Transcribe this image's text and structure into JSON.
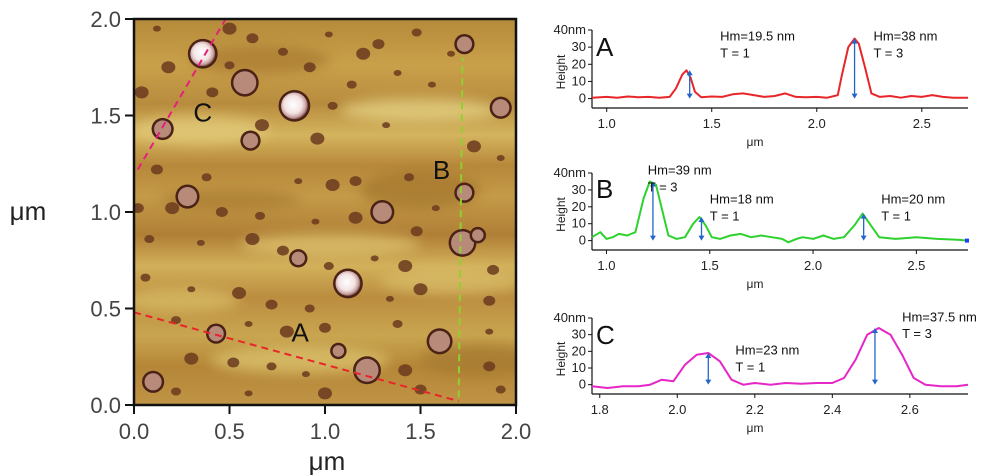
{
  "afm_image": {
    "x_axis": {
      "label": "μm",
      "ticks": [
        "0.0",
        "0.5",
        "1.0",
        "1.5",
        "2.0"
      ],
      "tick_values": [
        0,
        0.5,
        1.0,
        1.5,
        2.0
      ],
      "range": [
        0,
        2
      ]
    },
    "y_axis": {
      "label": "μm",
      "ticks": [
        "0.0",
        "0.5",
        "1.0",
        "1.5",
        "2.0"
      ],
      "tick_values": [
        0,
        0.5,
        1.0,
        1.5,
        2.0
      ],
      "range": [
        0,
        2
      ]
    },
    "line_labels": [
      {
        "text": "A",
        "x": 0.87,
        "y": 0.33
      },
      {
        "text": "B",
        "x": 1.61,
        "y": 1.17
      },
      {
        "text": "C",
        "x": 0.36,
        "y": 1.47
      }
    ],
    "profile_lines": [
      {
        "id": "A",
        "color": "#e8262a",
        "from": [
          0,
          0.48
        ],
        "to": [
          1.7,
          0.02
        ]
      },
      {
        "id": "B",
        "color": "#8fd12e",
        "from": [
          1.7,
          0.04
        ],
        "to": [
          1.72,
          1.8
        ]
      },
      {
        "id": "C",
        "color": "#e4207a",
        "from": [
          0.02,
          1.22
        ],
        "to": [
          0.48,
          2.0
        ]
      }
    ],
    "particles_large": [
      [
        0.36,
        1.82,
        0.065
      ],
      [
        0.58,
        1.67,
        0.06
      ],
      [
        0.84,
        1.55,
        0.07
      ],
      [
        0.15,
        1.43,
        0.045
      ],
      [
        1.72,
        0.84,
        0.06
      ],
      [
        1.12,
        0.63,
        0.065
      ],
      [
        1.6,
        0.33,
        0.055
      ],
      [
        1.22,
        0.18,
        0.06
      ],
      [
        0.1,
        0.12,
        0.045
      ],
      [
        0.43,
        0.37,
        0.04
      ],
      [
        1.73,
        1.87,
        0.04
      ],
      [
        1.73,
        1.1,
        0.04
      ],
      [
        1.3,
        1.0,
        0.05
      ],
      [
        0.28,
        1.08,
        0.05
      ],
      [
        0.61,
        1.37,
        0.04
      ],
      [
        1.92,
        1.54,
        0.045
      ],
      [
        0.86,
        0.76,
        0.035
      ],
      [
        1.07,
        0.28,
        0.03
      ],
      [
        1.8,
        0.88,
        0.03
      ]
    ],
    "particles_small": [
      [
        0.12,
        1.95
      ],
      [
        0.5,
        1.95
      ],
      [
        0.62,
        1.9
      ],
      [
        0.78,
        1.83
      ],
      [
        1.02,
        1.92
      ],
      [
        1.2,
        1.82
      ],
      [
        1.28,
        1.87
      ],
      [
        1.48,
        1.93
      ],
      [
        1.66,
        1.82
      ],
      [
        0.18,
        1.75
      ],
      [
        0.92,
        1.75
      ],
      [
        1.14,
        1.66
      ],
      [
        1.38,
        1.72
      ],
      [
        0.04,
        1.62
      ],
      [
        0.41,
        1.62
      ],
      [
        1.04,
        1.55
      ],
      [
        1.32,
        1.45
      ],
      [
        0.67,
        1.45
      ],
      [
        0.12,
        1.22
      ],
      [
        0.38,
        1.18
      ],
      [
        0.86,
        1.16
      ],
      [
        1.04,
        1.14
      ],
      [
        1.16,
        1.16
      ],
      [
        1.44,
        1.18
      ],
      [
        1.58,
        1.02
      ],
      [
        0.2,
        1.02
      ],
      [
        0.46,
        1.0
      ],
      [
        0.66,
        0.98
      ],
      [
        0.95,
        0.95
      ],
      [
        1.16,
        0.97
      ],
      [
        1.48,
        0.9
      ],
      [
        0.08,
        0.86
      ],
      [
        0.35,
        0.84
      ],
      [
        0.62,
        0.86
      ],
      [
        0.78,
        0.8
      ],
      [
        1.02,
        0.72
      ],
      [
        1.26,
        0.76
      ],
      [
        1.42,
        0.72
      ],
      [
        1.88,
        0.7
      ],
      [
        0.06,
        0.66
      ],
      [
        0.3,
        0.6
      ],
      [
        0.55,
        0.58
      ],
      [
        0.72,
        0.52
      ],
      [
        0.92,
        0.5
      ],
      [
        1.34,
        0.55
      ],
      [
        1.5,
        0.6
      ],
      [
        1.86,
        0.54
      ],
      [
        0.22,
        0.44
      ],
      [
        0.6,
        0.42
      ],
      [
        0.8,
        0.38
      ],
      [
        1.0,
        0.4
      ],
      [
        1.38,
        0.42
      ],
      [
        1.86,
        0.38
      ],
      [
        0.3,
        0.24
      ],
      [
        0.52,
        0.22
      ],
      [
        0.72,
        0.2
      ],
      [
        0.9,
        0.16
      ],
      [
        1.42,
        0.18
      ],
      [
        1.86,
        0.2
      ],
      [
        0.22,
        0.07
      ],
      [
        0.6,
        0.06
      ],
      [
        1.0,
        0.06
      ],
      [
        1.5,
        0.08
      ],
      [
        1.92,
        0.08
      ],
      [
        1.92,
        1.28
      ],
      [
        1.78,
        1.34
      ],
      [
        0.02,
        1.02
      ],
      [
        0.5,
        1.76
      ],
      [
        1.56,
        1.66
      ],
      [
        0.96,
        1.38
      ]
    ]
  },
  "chart_data": [
    {
      "type": "line",
      "panel": "A",
      "color": "#e8262a",
      "xlabel": "μm",
      "ylabel": "Height",
      "xlim": [
        0.93,
        2.72
      ],
      "ylim": [
        -2,
        40
      ],
      "x_ticks": [
        "1.0",
        "1.5",
        "2.0",
        "2.5"
      ],
      "x_tick_values": [
        1.0,
        1.5,
        2.0,
        2.5
      ],
      "y_ticks": [
        "0",
        "10",
        "20",
        "30",
        "40nm"
      ],
      "y_tick_values": [
        0,
        10,
        20,
        30,
        40
      ],
      "x": [
        0.93,
        1.0,
        1.05,
        1.1,
        1.15,
        1.2,
        1.25,
        1.3,
        1.33,
        1.36,
        1.38,
        1.4,
        1.42,
        1.45,
        1.5,
        1.55,
        1.6,
        1.65,
        1.7,
        1.75,
        1.8,
        1.85,
        1.9,
        1.95,
        2.0,
        2.05,
        2.1,
        2.12,
        2.15,
        2.18,
        2.2,
        2.23,
        2.26,
        2.3,
        2.35,
        2.4,
        2.45,
        2.5,
        2.55,
        2.6,
        2.65,
        2.72
      ],
      "y": [
        0.5,
        1,
        0.5,
        1.2,
        0.8,
        1,
        0.5,
        1,
        6,
        14,
        16.5,
        12,
        4,
        0.8,
        1.2,
        1,
        2.5,
        3,
        2,
        1,
        1.5,
        3,
        1,
        0.8,
        1,
        0.5,
        2,
        14,
        30,
        35,
        32,
        18,
        3,
        1,
        1.5,
        0.5,
        1.5,
        1,
        2,
        1,
        0.5,
        0.5
      ],
      "annotations": [
        {
          "text": "Hm=19.5 nm",
          "x": 1.54,
          "y": 34
        },
        {
          "text": "T = 1",
          "x": 1.54,
          "y": 24
        },
        {
          "text": "Hm=38 nm",
          "x": 2.27,
          "y": 34
        },
        {
          "text": "T = 3",
          "x": 2.27,
          "y": 24
        }
      ],
      "arrows": [
        {
          "x": 1.395,
          "y_from": 0,
          "y_to": 16.5
        },
        {
          "x": 2.18,
          "y_from": 0,
          "y_to": 35
        }
      ],
      "panel_label": "A"
    },
    {
      "type": "line",
      "panel": "B",
      "color": "#2ed12e",
      "xlabel": "μm",
      "ylabel": "Height",
      "xlim": [
        0.93,
        2.75
      ],
      "ylim": [
        -2,
        40
      ],
      "x_ticks": [
        "1.0",
        "1.5",
        "2.0",
        "2.5"
      ],
      "x_tick_values": [
        1.0,
        1.5,
        2.0,
        2.5
      ],
      "y_ticks": [
        "0",
        "10",
        "20",
        "30",
        "40nm"
      ],
      "y_tick_values": [
        0,
        10,
        20,
        30,
        40
      ],
      "x": [
        0.93,
        0.97,
        1.0,
        1.03,
        1.06,
        1.1,
        1.14,
        1.18,
        1.21,
        1.24,
        1.27,
        1.3,
        1.34,
        1.38,
        1.42,
        1.45,
        1.48,
        1.51,
        1.55,
        1.6,
        1.65,
        1.7,
        1.75,
        1.8,
        1.85,
        1.88,
        1.92,
        1.95,
        2.0,
        2.05,
        2.1,
        2.15,
        2.2,
        2.24,
        2.28,
        2.32,
        2.4,
        2.5,
        2.6,
        2.7,
        2.75
      ],
      "y": [
        2,
        5,
        1,
        2,
        4,
        3,
        5,
        25,
        35,
        33,
        18,
        3,
        1,
        2,
        10,
        14,
        9,
        2,
        1,
        3,
        4,
        2,
        3,
        2,
        1,
        -1,
        1,
        2,
        1,
        3,
        1,
        2,
        9,
        16,
        9,
        2,
        1,
        2,
        1,
        0.5,
        0
      ],
      "annotations": [
        {
          "text": "Hm=39 nm",
          "x": 1.2,
          "y": 39
        },
        {
          "text": "T = 3",
          "x": 1.2,
          "y": 29
        },
        {
          "text": "Hm=18 nm",
          "x": 1.5,
          "y": 22
        },
        {
          "text": "T = 1",
          "x": 1.5,
          "y": 12
        },
        {
          "text": "Hm=20 nm",
          "x": 2.33,
          "y": 22
        },
        {
          "text": "T = 1",
          "x": 2.33,
          "y": 12
        }
      ],
      "arrows": [
        {
          "x": 1.225,
          "y_from": 0,
          "y_to": 35
        },
        {
          "x": 1.46,
          "y_from": 0,
          "y_to": 14
        },
        {
          "x": 2.245,
          "y_from": 0,
          "y_to": 16
        }
      ],
      "end_marker": {
        "x": 2.745,
        "y": 0,
        "color": "#1f3cff"
      },
      "panel_label": "B"
    },
    {
      "type": "line",
      "panel": "C",
      "color": "#e627c8",
      "xlabel": "μm",
      "ylabel": "Height",
      "xlim": [
        1.78,
        2.75
      ],
      "ylim": [
        -2,
        40
      ],
      "x_ticks": [
        "1.8",
        "2.0",
        "2.2",
        "2.4",
        "2.6"
      ],
      "x_tick_values": [
        1.8,
        2.0,
        2.2,
        2.4,
        2.6
      ],
      "y_ticks": [
        "0",
        "10",
        "20",
        "30",
        "40nm"
      ],
      "y_tick_values": [
        0,
        10,
        20,
        30,
        40
      ],
      "x": [
        1.78,
        1.82,
        1.86,
        1.9,
        1.93,
        1.96,
        1.99,
        2.02,
        2.05,
        2.08,
        2.11,
        2.14,
        2.17,
        2.2,
        2.24,
        2.28,
        2.32,
        2.36,
        2.4,
        2.43,
        2.46,
        2.49,
        2.52,
        2.55,
        2.58,
        2.61,
        2.64,
        2.68,
        2.72,
        2.75
      ],
      "y": [
        -1,
        -2,
        -1,
        -1,
        0,
        3,
        2,
        12,
        18,
        19,
        14,
        3,
        0,
        1,
        0,
        1,
        0.5,
        1,
        1,
        4,
        15,
        30,
        34,
        30,
        18,
        4,
        0,
        -1,
        -1,
        0
      ],
      "annotations": [
        {
          "text": "Hm=23 nm",
          "x": 2.15,
          "y": 18
        },
        {
          "text": "T = 1",
          "x": 2.15,
          "y": 8
        },
        {
          "text": "Hm=37.5 nm",
          "x": 2.58,
          "y": 38
        },
        {
          "text": "T = 3",
          "x": 2.58,
          "y": 28
        }
      ],
      "arrows": [
        {
          "x": 2.08,
          "y_from": 0,
          "y_to": 19
        },
        {
          "x": 2.51,
          "y_from": 0,
          "y_to": 34
        }
      ],
      "panel_label": "C"
    }
  ]
}
